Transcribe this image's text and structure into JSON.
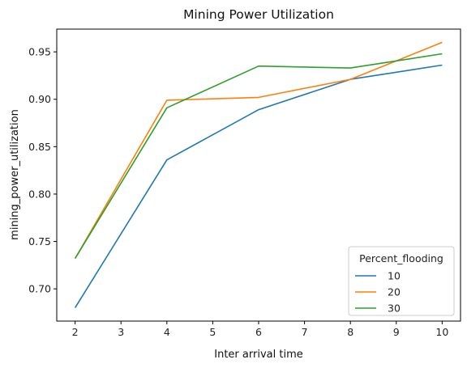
{
  "chart_data": {
    "type": "line",
    "title": "Mining Power Utilization",
    "xlabel": "Inter arrival time",
    "ylabel": "mining_power_utilization",
    "x": [
      2,
      4,
      6,
      8,
      10
    ],
    "xlim": [
      1.6,
      10.4
    ],
    "ylim": [
      0.666,
      0.974
    ],
    "xticks": [
      2,
      3,
      4,
      5,
      6,
      7,
      8,
      9,
      10
    ],
    "yticks": [
      0.7,
      0.75,
      0.8,
      0.85,
      0.9,
      0.95
    ],
    "ytick_labels": [
      "0.70",
      "0.75",
      "0.80",
      "0.85",
      "0.90",
      "0.95"
    ],
    "grid": false,
    "legend": {
      "title": "Percent_flooding",
      "placement": "lower-right"
    },
    "series": [
      {
        "name": "10",
        "color": "#1f77b4",
        "values": [
          0.68,
          0.836,
          0.889,
          0.921,
          0.936
        ]
      },
      {
        "name": "20",
        "color": "#ff7f0e",
        "values": [
          0.732,
          0.899,
          0.902,
          0.921,
          0.96
        ]
      },
      {
        "name": "30",
        "color": "#2ca02c",
        "values": [
          0.732,
          0.891,
          0.935,
          0.933,
          0.948
        ]
      }
    ]
  }
}
